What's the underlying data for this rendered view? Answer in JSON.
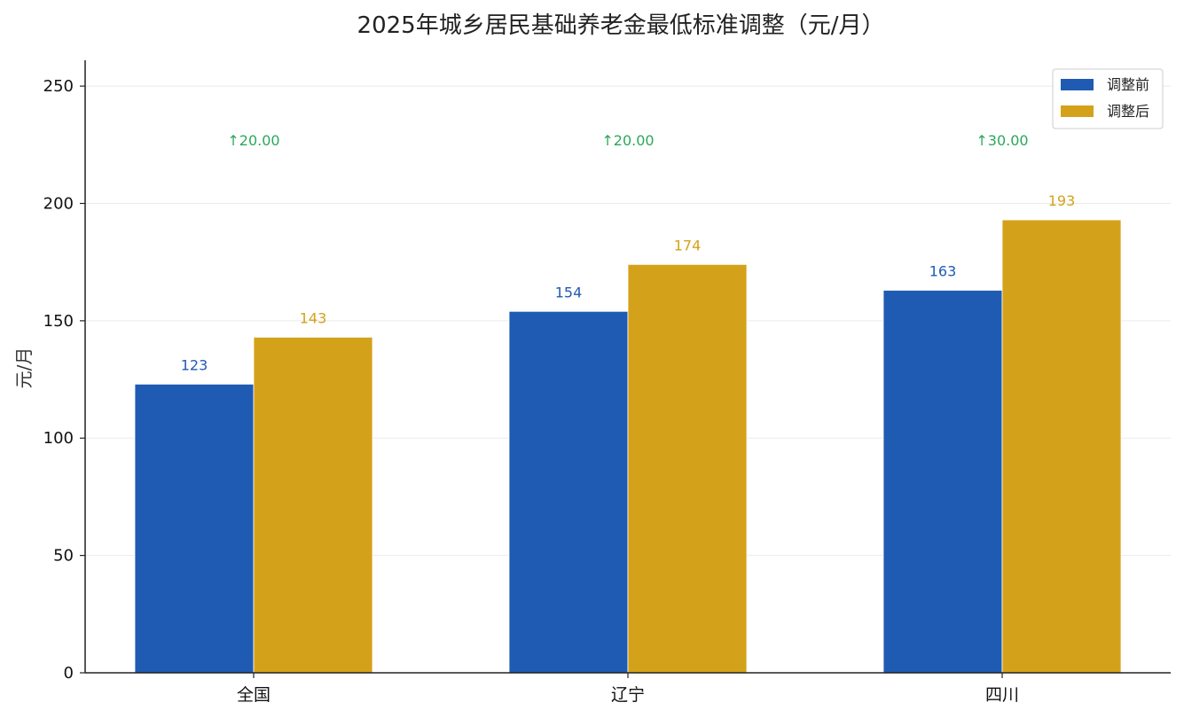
{
  "chart_data": {
    "type": "bar",
    "title": "2025年城乡居民基础养老金最低标准调整（元/月）",
    "xlabel": "",
    "ylabel": "元/月",
    "categories": [
      "全国",
      "辽宁",
      "四川"
    ],
    "series": [
      {
        "name": "调整前",
        "values": [
          123,
          154,
          163
        ],
        "color": "#1f5bb2",
        "labels": [
          "123",
          "154",
          "163"
        ]
      },
      {
        "name": "调整后",
        "values": [
          143,
          174,
          193
        ],
        "color": "#d4a11a",
        "labels": [
          "143",
          "174",
          "193"
        ]
      }
    ],
    "deltas": [
      "↑20.00",
      "↑20.00",
      "↑30.00"
    ],
    "delta_color": "#2aa85a",
    "delta_value": 227,
    "ylim": [
      0,
      261
    ],
    "yticks": [
      0,
      50,
      100,
      150,
      200,
      250
    ],
    "ytick_labels": [
      "0",
      "50",
      "100",
      "150",
      "200",
      "250"
    ],
    "grid": true,
    "legend_position": "top-right"
  }
}
